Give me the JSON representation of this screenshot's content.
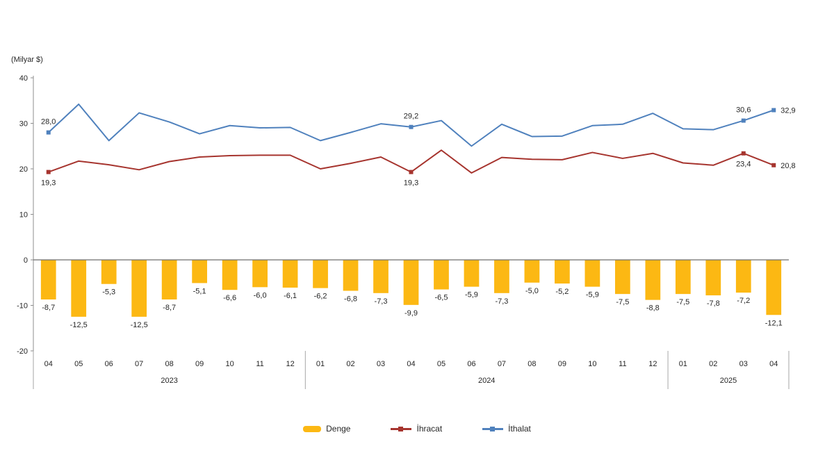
{
  "chart_data": {
    "type": "bar",
    "title": "",
    "ylabel": "(Milyar $)",
    "ylim": [
      -20,
      40
    ],
    "yticks": [
      40,
      30,
      20,
      10,
      0,
      -10,
      -20
    ],
    "grid": false,
    "legend_position": "bottom",
    "categories": [
      "04",
      "05",
      "06",
      "07",
      "08",
      "09",
      "10",
      "11",
      "12",
      "01",
      "02",
      "03",
      "04",
      "05",
      "06",
      "07",
      "08",
      "09",
      "10",
      "11",
      "12",
      "01",
      "02",
      "03",
      "04"
    ],
    "year_groups": [
      {
        "label": "2023",
        "start": 0,
        "count": 9
      },
      {
        "label": "2024",
        "start": 9,
        "count": 12
      },
      {
        "label": "2025",
        "start": 21,
        "count": 4
      }
    ],
    "series": [
      {
        "name": "Denge",
        "type": "bar",
        "color": "#FCB813",
        "values": [
          -8.7,
          -12.5,
          -5.3,
          -12.5,
          -8.7,
          -5.1,
          -6.6,
          -6.0,
          -6.1,
          -6.2,
          -6.8,
          -7.3,
          -9.9,
          -6.5,
          -5.9,
          -7.3,
          -5.0,
          -5.2,
          -5.9,
          -7.5,
          -8.8,
          -7.5,
          -7.8,
          -7.2,
          -12.1
        ],
        "labels": "all"
      },
      {
        "name": "İhracat",
        "type": "line",
        "color": "#A6342E",
        "label_pos": "below",
        "values": [
          19.3,
          21.7,
          20.9,
          19.8,
          21.6,
          22.6,
          22.9,
          23.0,
          23.0,
          20.0,
          21.2,
          22.6,
          19.3,
          24.1,
          19.1,
          22.5,
          22.1,
          22.0,
          23.6,
          22.3,
          23.4,
          21.3,
          20.8,
          23.4,
          20.8
        ],
        "point_labels": {
          "0": "19,3",
          "12": "19,3",
          "23": "23,4",
          "24": "20,8"
        }
      },
      {
        "name": "İthalat",
        "type": "line",
        "color": "#4F81BD",
        "label_pos": "above",
        "values": [
          28.0,
          34.2,
          26.2,
          32.3,
          30.3,
          27.7,
          29.5,
          29.0,
          29.1,
          26.2,
          28.0,
          29.9,
          29.2,
          30.6,
          25.0,
          29.8,
          27.1,
          27.2,
          29.5,
          29.8,
          32.2,
          28.8,
          28.6,
          30.6,
          32.9
        ],
        "point_labels": {
          "0": "28,0",
          "12": "29,2",
          "23": "30,6",
          "24": "32,9"
        }
      }
    ]
  }
}
